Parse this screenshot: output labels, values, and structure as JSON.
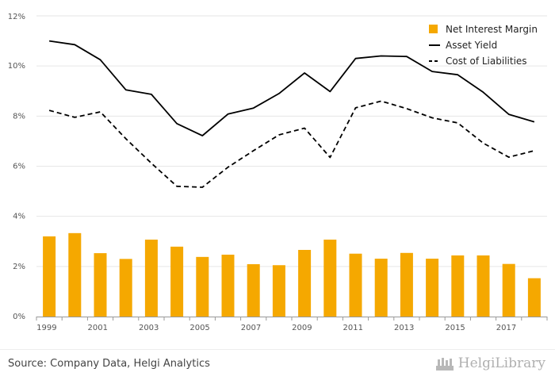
{
  "chart_data": {
    "type": "bar+line",
    "categories": [
      1999,
      2000,
      2001,
      2002,
      2003,
      2004,
      2005,
      2006,
      2007,
      2008,
      2009,
      2010,
      2011,
      2012,
      2013,
      2014,
      2015,
      2016,
      2017,
      2018
    ],
    "x_tick_labels": [
      "1999",
      "2001",
      "2003",
      "2005",
      "2007",
      "2009",
      "2011",
      "2013",
      "2015",
      "2017"
    ],
    "y_ticks": [
      0,
      2,
      4,
      6,
      8,
      10,
      12
    ],
    "y_tick_labels": [
      "0%",
      "2%",
      "4%",
      "6%",
      "8%",
      "10%",
      "12%"
    ],
    "ylim": [
      0,
      12
    ],
    "grid": true,
    "legend_position": "top-right",
    "series": [
      {
        "name": "Net Interest Margin",
        "kind": "bar",
        "color": "#f5a800",
        "values": [
          3.2,
          3.33,
          2.53,
          2.3,
          3.07,
          2.79,
          2.38,
          2.47,
          2.09,
          2.05,
          2.66,
          3.07,
          2.51,
          2.31,
          2.54,
          2.31,
          2.44,
          2.44,
          2.1,
          1.53
        ]
      },
      {
        "name": "Asset Yield",
        "kind": "line",
        "style": "solid",
        "color": "#000000",
        "values": [
          11.0,
          10.85,
          10.25,
          9.05,
          8.87,
          7.7,
          7.22,
          8.08,
          8.32,
          8.9,
          9.72,
          8.98,
          10.3,
          10.4,
          10.38,
          9.78,
          9.65,
          8.95,
          8.07,
          7.77
        ]
      },
      {
        "name": "Cost of Liabilities",
        "kind": "line",
        "style": "dashed",
        "color": "#000000",
        "values": [
          8.23,
          7.95,
          8.17,
          7.1,
          6.12,
          5.2,
          5.16,
          5.96,
          6.62,
          7.25,
          7.52,
          6.35,
          8.33,
          8.6,
          8.3,
          7.93,
          7.73,
          6.92,
          6.36,
          6.62
        ]
      }
    ]
  },
  "footer": {
    "source": "Source: Company Data, Helgi Analytics",
    "logo_text": "HelgiLibrary"
  }
}
